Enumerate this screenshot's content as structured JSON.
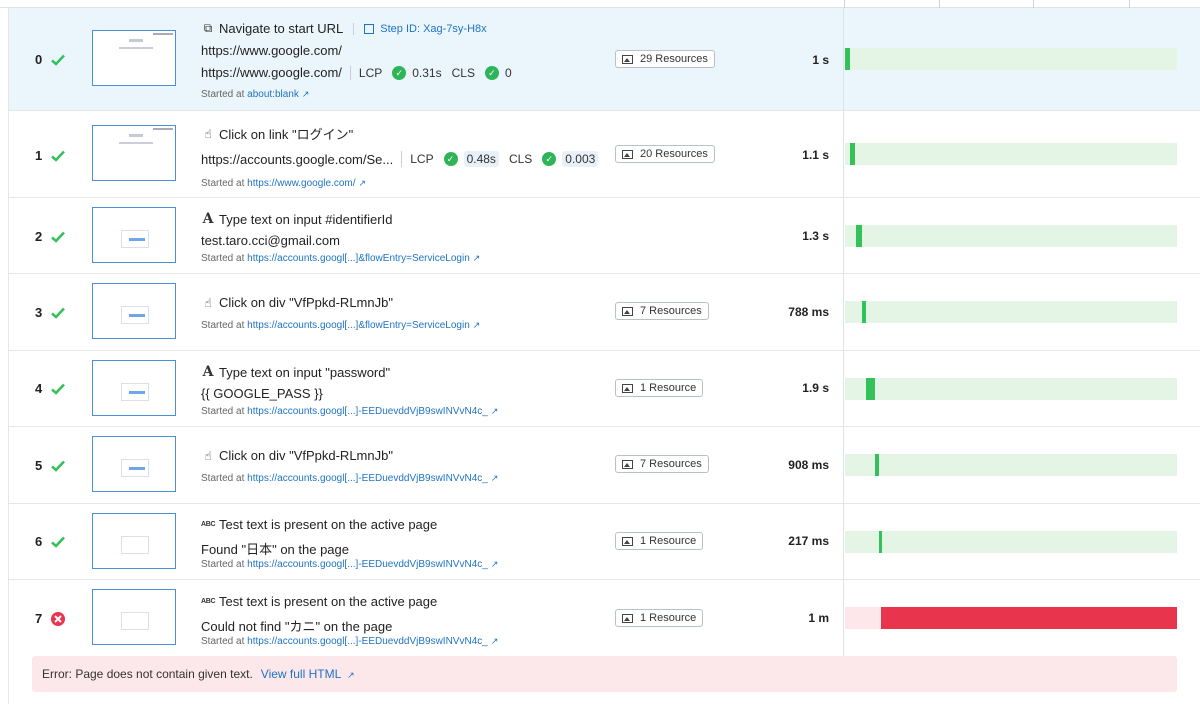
{
  "colors": {
    "success": "#34c15a",
    "error": "#e8344c",
    "link": "#1f73c4",
    "selected_row": "#ebf5fc"
  },
  "steps": [
    {
      "index": "0",
      "status": "success",
      "action_icon": "navigate-icon",
      "action": "Navigate to start URL",
      "step_id": "Step ID: Xag-7sy-H8x",
      "value": "https://www.google.com/",
      "url": "https://www.google.com/",
      "lcp_label": "LCP",
      "lcp": "0.31s",
      "cls_label": "CLS",
      "cls": "0",
      "started_prefix": "Started at",
      "started_url": "about:blank",
      "resources": "29 Resources",
      "duration": "1 s",
      "bar_start": 0.0,
      "bar_fraction": 0.014
    },
    {
      "index": "1",
      "status": "success",
      "action_icon": "click-hand-icon",
      "action": "Click on link \"ログイン\"",
      "url": "https://accounts.google.com/Se...",
      "lcp_label": "LCP",
      "lcp": "0.48s",
      "cls_label": "CLS",
      "cls": "0.003",
      "started_prefix": "Started at",
      "started_url": "https://www.google.com/",
      "resources": "20 Resources",
      "duration": "1.1 s",
      "bar_start": 0.014,
      "bar_fraction": 0.016
    },
    {
      "index": "2",
      "status": "success",
      "action_icon": "type-text-icon",
      "action": "Type text on input #identifierId",
      "value": "test.taro.cci@gmail.com",
      "started_prefix": "Started at",
      "started_url": "https://accounts.googl[...]&flowEntry=ServiceLogin",
      "duration": "1.3 s",
      "bar_start": 0.032,
      "bar_fraction": 0.018
    },
    {
      "index": "3",
      "status": "success",
      "action_icon": "click-hand-icon",
      "action": "Click on div \"VfPpkd-RLmnJb\"",
      "started_prefix": "Started at",
      "started_url": "https://accounts.googl[...]&flowEntry=ServiceLogin",
      "resources": "7 Resources",
      "duration": "788 ms",
      "bar_start": 0.05,
      "bar_fraction": 0.011
    },
    {
      "index": "4",
      "status": "success",
      "action_icon": "type-text-icon",
      "action": "Type text on input \"password\"",
      "value": "{{ GOOGLE_PASS }}",
      "started_prefix": "Started at",
      "started_url": "https://accounts.googl[...]-EEDuevddVjB9swINVvN4c_",
      "resources": "1 Resource",
      "duration": "1.9 s",
      "bar_start": 0.062,
      "bar_fraction": 0.027
    },
    {
      "index": "5",
      "status": "success",
      "action_icon": "click-hand-icon",
      "action": "Click on div \"VfPpkd-RLmnJb\"",
      "started_prefix": "Started at",
      "started_url": "https://accounts.googl[...]-EEDuevddVjB9swINVvN4c_",
      "resources": "7 Resources",
      "duration": "908 ms",
      "bar_start": 0.089,
      "bar_fraction": 0.013
    },
    {
      "index": "6",
      "status": "success",
      "action_icon": "abc-check-icon",
      "action": "Test text is present on the active page",
      "value": "Found \"日本\" on the page",
      "started_prefix": "Started at",
      "started_url": "https://accounts.googl[...]-EEDuevddVjB9swINVvN4c_",
      "resources": "1 Resource",
      "duration": "217 ms",
      "bar_start": 0.103,
      "bar_fraction": 0.004
    },
    {
      "index": "7",
      "status": "error",
      "action_icon": "abc-check-icon",
      "action": "Test text is present on the active page",
      "value": "Could not find \"カニ\" on the page",
      "started_prefix": "Started at",
      "started_url": "https://accounts.googl[...]-EEDuevddVjB9swINVvN4c_",
      "resources": "1 Resource",
      "duration": "1 m",
      "bar_start": 0.107,
      "bar_fraction": 0.893
    }
  ],
  "error": {
    "message": "Error: Page does not contain given text.",
    "link": "View full HTML"
  }
}
